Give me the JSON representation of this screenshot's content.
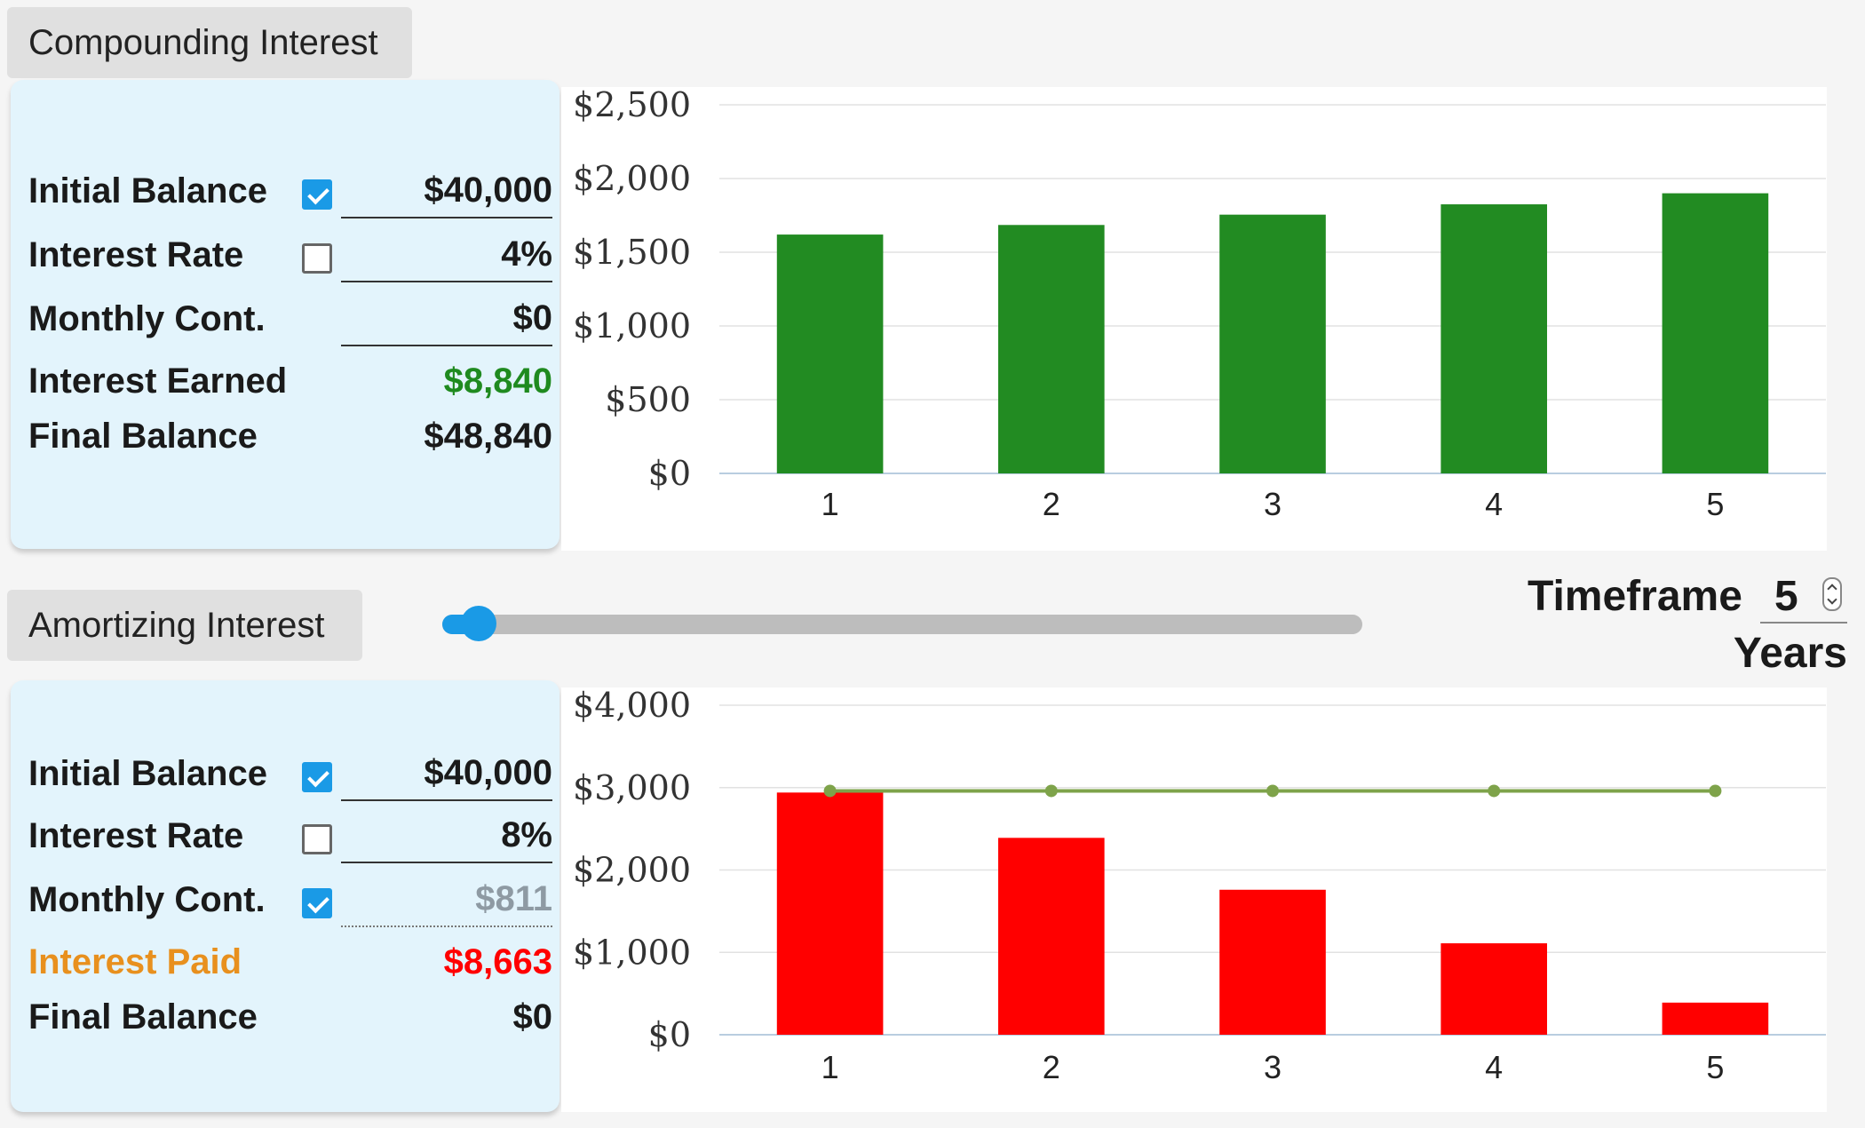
{
  "colors": {
    "accent_blue": "#1a9ae6",
    "panel_bg": "#e3f4fc",
    "earned_green": "#1f8a1f",
    "paid_red": "#ff0000",
    "paid_label_orange": "#e8901e",
    "bar_green": "#228b22",
    "bar_red": "#ff0000",
    "line_olive": "#7ea34a",
    "muted_value": "#8e9aa3"
  },
  "compounding": {
    "tab_label": "Compounding Interest",
    "rows": [
      {
        "label": "Initial Balance",
        "checked": true,
        "value": "$40,000"
      },
      {
        "label": "Interest Rate",
        "checked": false,
        "value": "4%"
      },
      {
        "label": "Monthly Cont.",
        "value": "$0"
      },
      {
        "label": "Interest Earned",
        "value": "$8,840"
      },
      {
        "label": "Final Balance",
        "value": "$48,840"
      }
    ]
  },
  "amortizing": {
    "tab_label": "Amortizing Interest",
    "rows": [
      {
        "label": "Initial Balance",
        "checked": true,
        "value": "$40,000"
      },
      {
        "label": "Interest Rate",
        "checked": false,
        "value": "8%"
      },
      {
        "label": "Monthly Cont.",
        "checked": true,
        "value": "$811"
      },
      {
        "label": "Interest Paid",
        "value": "$8,663"
      },
      {
        "label": "Final Balance",
        "value": "$0"
      }
    ]
  },
  "timeframe": {
    "label": "Timeframe",
    "value": "5",
    "unit": "Years",
    "slider_fraction": 0.04
  },
  "chart_data": [
    {
      "type": "bar",
      "categories": [
        "1",
        "2",
        "3",
        "4",
        "5"
      ],
      "values": [
        1620,
        1685,
        1755,
        1825,
        1900
      ],
      "ylim": [
        0,
        2500
      ],
      "yticks": [
        "$0",
        "$500",
        "$1,000",
        "$1,500",
        "$2,000",
        "$2,500"
      ],
      "ytick_values": [
        0,
        500,
        1000,
        1500,
        2000,
        2500
      ],
      "grid": true,
      "color": "#228b22"
    },
    {
      "type": "bar",
      "categories": [
        "1",
        "2",
        "3",
        "4",
        "5"
      ],
      "values": [
        2940,
        2390,
        1760,
        1110,
        390
      ],
      "line_values": [
        2960,
        2960,
        2960,
        2960,
        2960
      ],
      "ylim": [
        0,
        4000
      ],
      "yticks": [
        "$0",
        "$1,000",
        "$2,000",
        "$3,000",
        "$4,000"
      ],
      "ytick_values": [
        0,
        1000,
        2000,
        3000,
        4000
      ],
      "grid": true,
      "color": "#ff0000",
      "line_color": "#7ea34a"
    }
  ]
}
